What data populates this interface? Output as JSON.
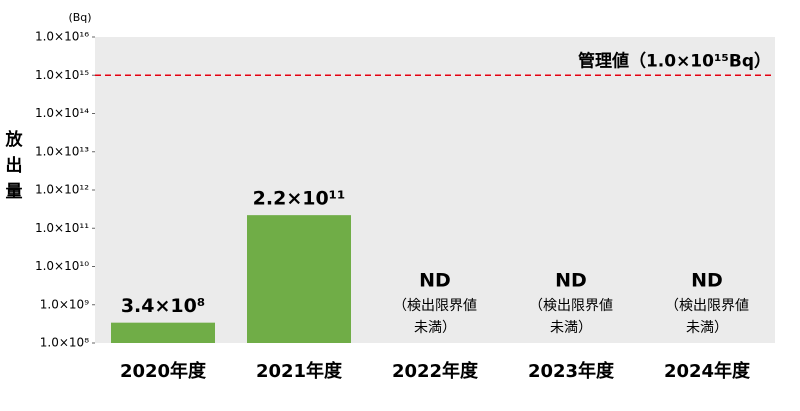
{
  "chart_data": {
    "type": "bar",
    "y_label": "放出量",
    "y_unit": "(Bq)",
    "categories": [
      "2020年度",
      "2021年度",
      "2022年度",
      "2023年度",
      "2024年度"
    ],
    "values": [
      340000000,
      220000000000,
      null,
      null,
      null
    ],
    "value_labels": [
      "3.4×10⁸",
      "2.2×10¹¹",
      "ND",
      "ND",
      "ND"
    ],
    "nd_note": [
      "（検出限界値",
      "未満）"
    ],
    "color": "#70ad47",
    "log_scale": true,
    "grid": false,
    "ylim": [
      100000000,
      10000000000000000
    ],
    "yticks": [
      {
        "value": 100000000,
        "label": "1.0×10⁸"
      },
      {
        "value": 1000000000,
        "label": "1.0×10⁹"
      },
      {
        "value": 10000000000,
        "label": "1.0×10¹⁰"
      },
      {
        "value": 100000000000,
        "label": "1.0×10¹¹"
      },
      {
        "value": 1000000000000,
        "label": "1.0×10¹²"
      },
      {
        "value": 10000000000000,
        "label": "1.0×10¹³"
      },
      {
        "value": 100000000000000,
        "label": "1.0×10¹⁴"
      },
      {
        "value": 1000000000000000,
        "label": "1.0×10¹⁵"
      },
      {
        "value": 10000000000000000,
        "label": "1.0×10¹⁶"
      }
    ],
    "reference": {
      "value": 1000000000000000,
      "label": "管理値（1.0×10¹⁵Bq）",
      "color": "#e60012"
    }
  }
}
